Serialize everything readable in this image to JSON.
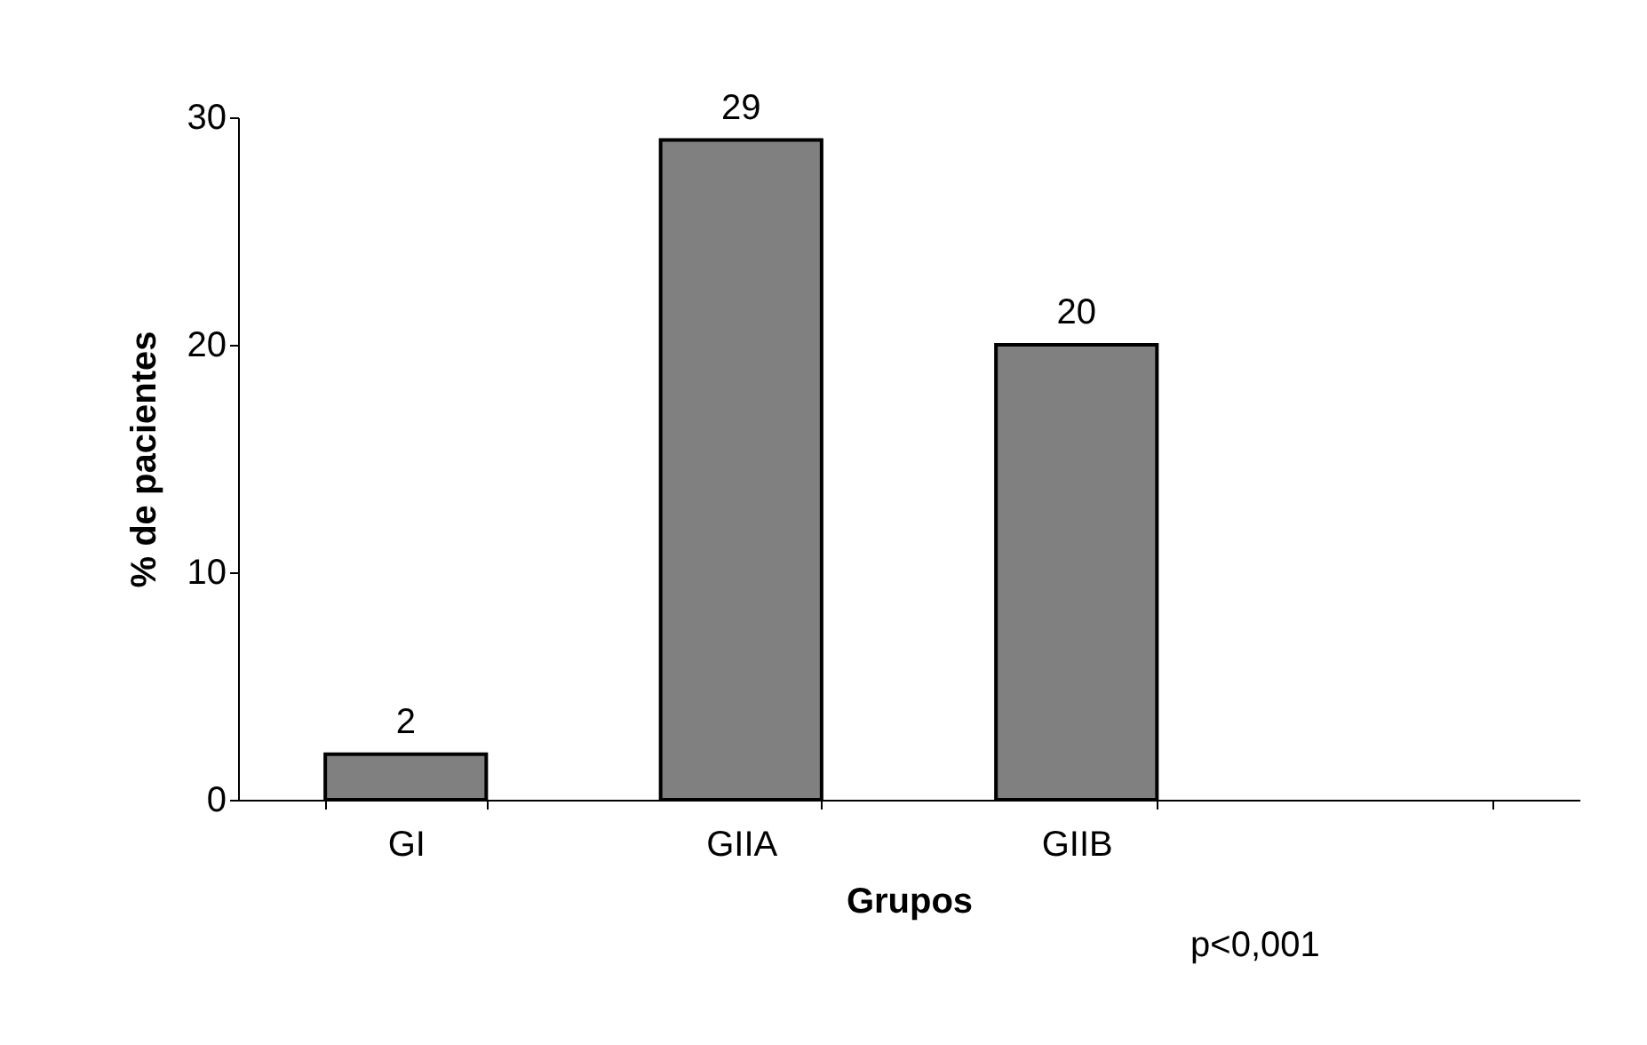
{
  "chart_data": {
    "type": "bar",
    "xlabel": "Grupos",
    "ylabel": "% de pacientes",
    "categories": [
      "GI",
      "GIIA",
      "GIIB",
      null
    ],
    "values": [
      2,
      29,
      20,
      null
    ],
    "color": "#808080",
    "ylim": [
      0,
      30
    ],
    "yticks": [
      0,
      10,
      20,
      30
    ],
    "grid": false,
    "data_labels": true,
    "annotations": [
      "p<0,001"
    ]
  }
}
